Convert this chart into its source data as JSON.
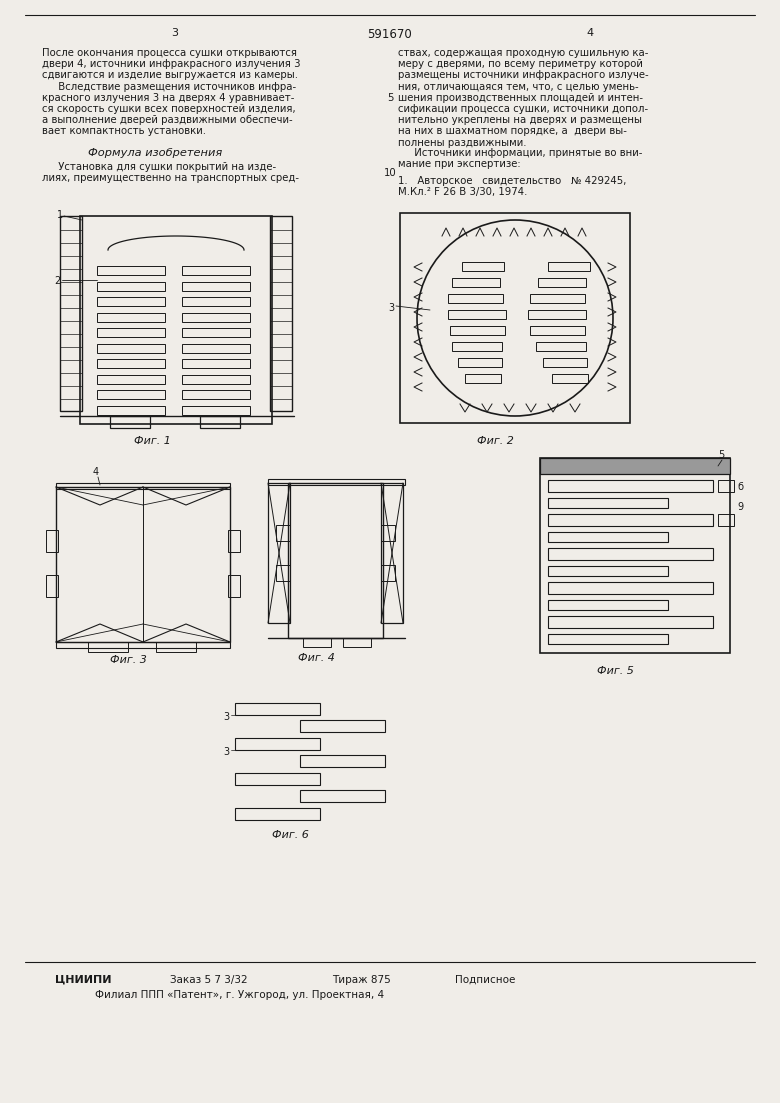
{
  "page_width": 7.8,
  "page_height": 11.03,
  "bg_color": "#f0ede8",
  "line_color": "#1a1a1a",
  "text_color": "#1a1a1a",
  "top_page_num_left": "3",
  "top_center": "591670",
  "top_page_num_right": "4",
  "col1_text": [
    "После окончания процесса сушки открываются",
    "двери 4, источники инфракрасного излучения 3",
    "сдвигаются и изделие выгружается из камеры.",
    "     Вследствие размещения источников инфра-",
    "красного излучения 3 на дверях 4 уравнивает-",
    "ся скорость сушки всех поверхностей изделия,",
    "а выполнение дверей раздвижными обеспечи-",
    "вает компактность установки."
  ],
  "col2_text": [
    "ствах, содержащая проходную сушильную ка-",
    "меру с дверями, по всему периметру которой",
    "размещены источники инфракрасного излуче-",
    "ния, отличающаяся тем, что, с целью умень-",
    "шения производственных площадей и интен-",
    "сификации процесса сушки, источники допол-",
    "нительно укреплены на дверях и размещены",
    "на них в шахматном порядке, а  двери вы-",
    "полнены раздвижными."
  ],
  "formula_header": "Формула изобретения",
  "formula_text_col1": [
    "     Установка для сушки покрытий на изде-",
    "лиях, преимущественно на транспортных сред-"
  ],
  "ref_col2_line1": "1.   Авторское   свидетельство   № 429245,",
  "ref_col2_line2": "М.Кл.² F 26 В 3/30, 1974.",
  "sources_header": "     Источники информации, принятые во вни-",
  "sources_line2": "мание при экспертизе:",
  "bottom_org": "ЦНИИПИ",
  "bottom_order": "Заказ 5 7 3/32",
  "bottom_tirazh": "Тираж 875",
  "bottom_podp": "Подписное",
  "bottom_branch": "Филиал ППП «Патент», г. Ужгород, ул. Проектная, 4",
  "fig1_caption": "Фиг. 1",
  "fig2_caption": "Фиг. 2",
  "fig3_caption": "Фиг. 3",
  "fig4_caption": "Фиг. 4",
  "fig5_caption": "Фиг. 5",
  "fig6_caption": "Фиг. 6"
}
